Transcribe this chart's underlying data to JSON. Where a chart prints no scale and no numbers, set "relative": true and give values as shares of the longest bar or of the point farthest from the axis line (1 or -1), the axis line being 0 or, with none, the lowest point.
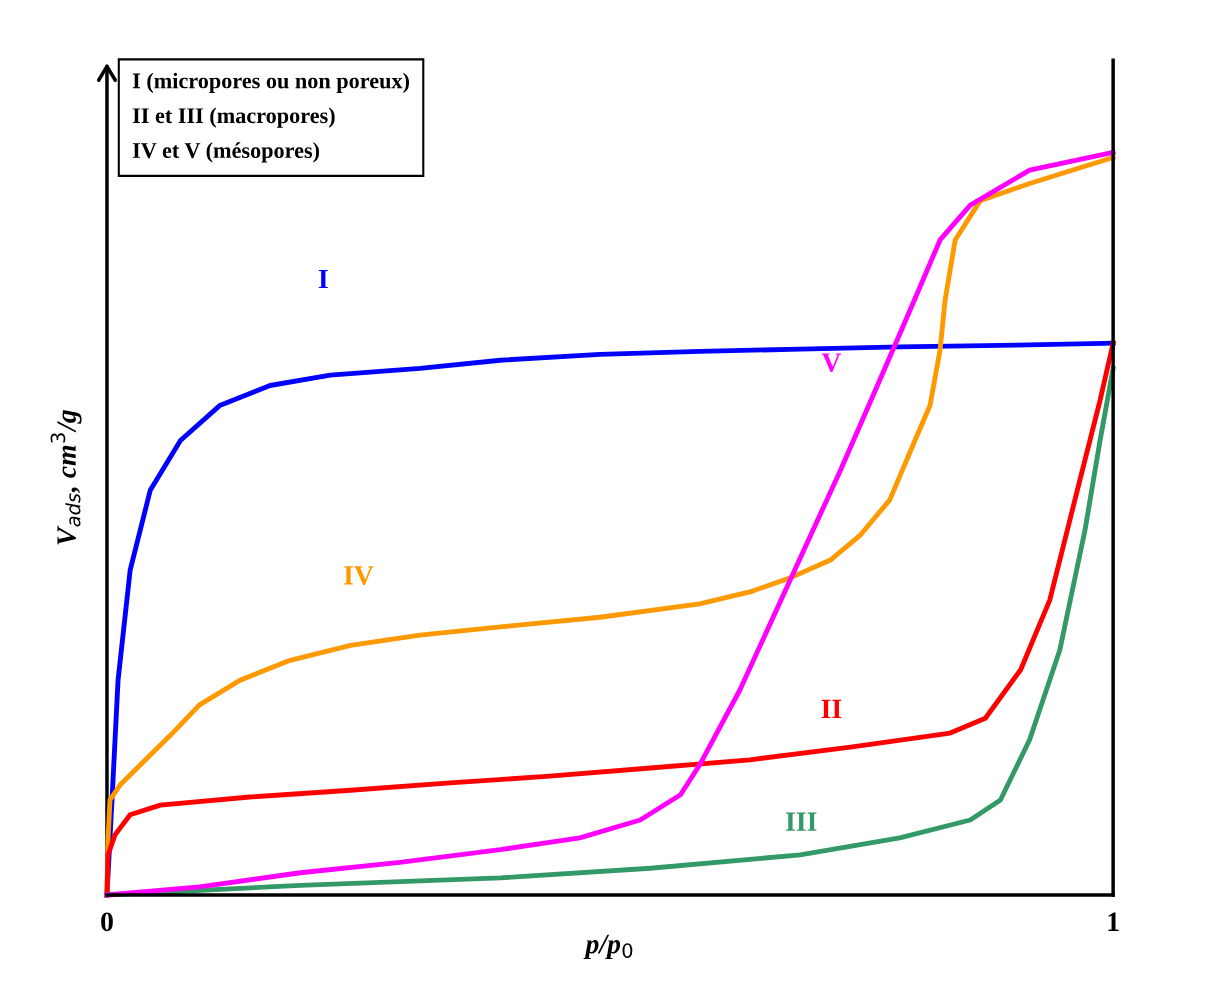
{
  "chart_data": {
    "type": "line",
    "relative": true,
    "xlabel": "p/p$_{0}$",
    "ylabel": "V$_{ads}$, cm$^{3}$/g",
    "xlim": [
      0,
      1
    ],
    "xticks": [
      0,
      1
    ],
    "grid": false,
    "legend": false,
    "marker": "none",
    "line_style": "solid",
    "annotations": [
      "I (micropores ou non poreux)",
      "II et III (macropores)",
      "IV et V (mésopores)"
    ],
    "series": [
      {
        "name": "I",
        "color": "#0000ff",
        "x": [
          0,
          0.005,
          0.011,
          0.023,
          0.043,
          0.073,
          0.112,
          0.162,
          0.222,
          0.311,
          0.391,
          0.49,
          0.589,
          0.689,
          0.788,
          0.888,
          1
        ],
        "values": [
          0,
          0.128,
          0.289,
          0.437,
          0.545,
          0.612,
          0.659,
          0.686,
          0.7,
          0.709,
          0.72,
          0.728,
          0.732,
          0.735,
          0.738,
          0.74,
          0.743
        ]
      },
      {
        "name": "IV",
        "color": "#ff9900",
        "x": [
          0,
          0.001,
          0.003,
          0.013,
          0.033,
          0.063,
          0.092,
          0.132,
          0.182,
          0.242,
          0.311,
          0.391,
          0.49,
          0.589,
          0.639,
          0.679,
          0.719,
          0.749,
          0.778,
          0.803,
          0.818,
          0.828,
          0.833,
          0.843,
          0.868,
          0.917,
          1
        ],
        "values": [
          0,
          0.074,
          0.128,
          0.148,
          0.175,
          0.215,
          0.256,
          0.289,
          0.316,
          0.336,
          0.35,
          0.361,
          0.374,
          0.392,
          0.408,
          0.427,
          0.451,
          0.485,
          0.532,
          0.612,
          0.659,
          0.734,
          0.801,
          0.882,
          0.935,
          0.958,
          0.993
        ]
      },
      {
        "name": "II",
        "color": "#ff0000",
        "x": [
          0,
          0.001,
          0.008,
          0.023,
          0.053,
          0.142,
          0.242,
          0.341,
          0.44,
          0.54,
          0.639,
          0.739,
          0.838,
          0.873,
          0.908,
          0.937,
          0.967,
          0.987,
          1
        ],
        "values": [
          0,
          0.054,
          0.081,
          0.108,
          0.121,
          0.132,
          0.141,
          0.151,
          0.16,
          0.171,
          0.182,
          0.199,
          0.218,
          0.238,
          0.303,
          0.397,
          0.559,
          0.666,
          0.743
        ]
      },
      {
        "name": "III",
        "color": "#339966",
        "x": [
          0,
          0.192,
          0.391,
          0.54,
          0.689,
          0.788,
          0.858,
          0.888,
          0.917,
          0.947,
          0.972,
          0.987,
          1
        ],
        "values": [
          0,
          0.013,
          0.023,
          0.036,
          0.054,
          0.077,
          0.101,
          0.128,
          0.209,
          0.33,
          0.491,
          0.612,
          0.709
        ]
      },
      {
        "name": "V",
        "color": "#ff00ff",
        "x": [
          0,
          0.092,
          0.192,
          0.291,
          0.391,
          0.47,
          0.53,
          0.57,
          0.589,
          0.629,
          0.679,
          0.729,
          0.768,
          0.798,
          0.828,
          0.858,
          0.917,
          1
        ],
        "values": [
          0,
          0.011,
          0.03,
          0.044,
          0.061,
          0.077,
          0.101,
          0.135,
          0.175,
          0.276,
          0.424,
          0.572,
          0.693,
          0.787,
          0.882,
          0.929,
          0.976,
          1
        ]
      }
    ]
  }
}
